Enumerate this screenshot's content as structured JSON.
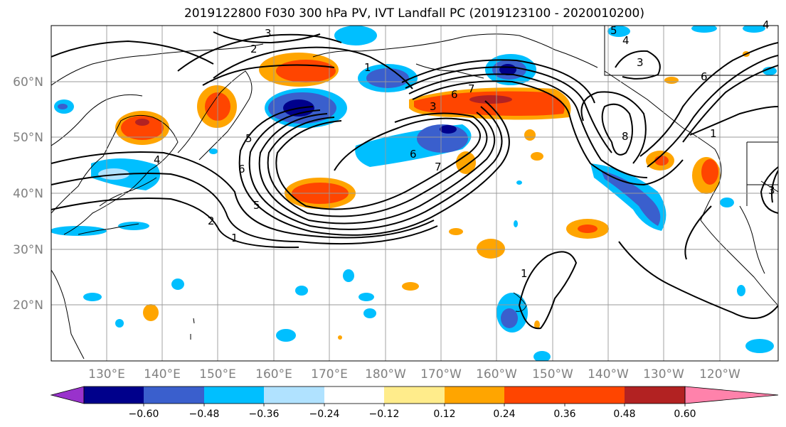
{
  "title": "2019122800 F030 300 hPa PV, IVT Landfall PC (2019123100 - 2020010200)",
  "map": {
    "lat_labels": [
      "60°N",
      "50°N",
      "40°N",
      "30°N",
      "20°N"
    ],
    "lon_labels": [
      "130°E",
      "140°E",
      "150°E",
      "160°E",
      "170°E",
      "180°W",
      "170°W",
      "160°W",
      "150°W",
      "140°W",
      "130°W",
      "120°W"
    ],
    "contour_labels": [
      "3",
      "2",
      "1",
      "6",
      "5",
      "4",
      "3",
      "6",
      "7",
      "8",
      "7",
      "6",
      "5",
      "2",
      "1",
      "1",
      "3",
      "4",
      "5",
      "6",
      "1",
      "3",
      "4"
    ]
  },
  "colorbar": {
    "colors": [
      "#9932CC",
      "#00008B",
      "#3A5FCD",
      "#00BFFF",
      "#B0E2FF",
      "#FFFFFF",
      "#FFEC8B",
      "#FFA500",
      "#FF4500",
      "#B22222",
      "#FF82AB"
    ],
    "ticks": [
      "−0.60",
      "−0.48",
      "−0.36",
      "−0.24",
      "−0.12",
      "0.12",
      "0.24",
      "0.36",
      "0.48",
      "0.60"
    ]
  }
}
